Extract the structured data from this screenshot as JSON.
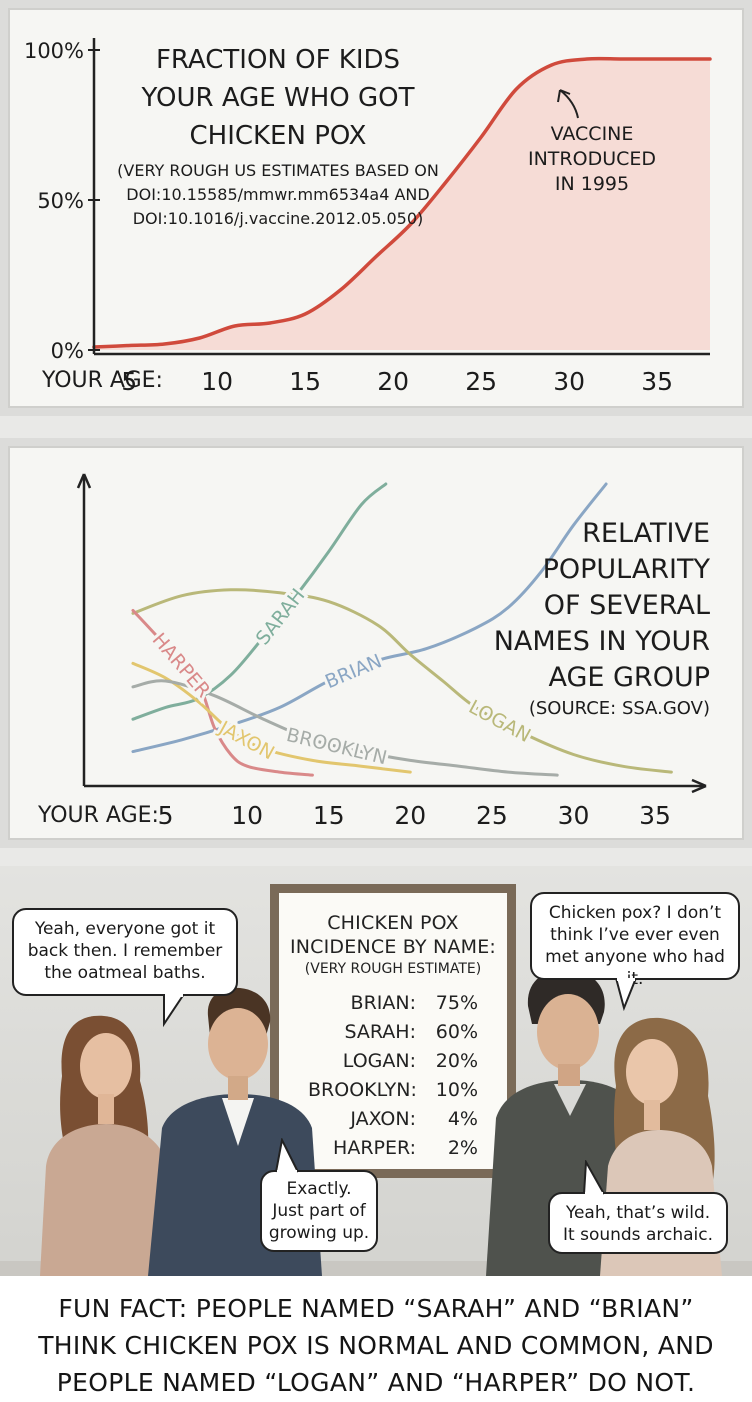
{
  "chart_data": [
    {
      "type": "area",
      "title": "FRACTION OF KIDS YOUR AGE WHO GOT CHICKEN POX",
      "title_lines": [
        "FRACTION OF KIDS",
        "YOUR AGE WHO GOT",
        "CHICKEN POX"
      ],
      "subtitle_lines": [
        "(VERY ROUGH US ESTIMATES BASED ON",
        "DOI:10.15585/mmwr.mm6534a4 AND",
        "DOI:10.1016/j.vaccine.2012.05.050)"
      ],
      "xlabel": "YOUR AGE:",
      "x_ticks": [
        "5",
        "10",
        "15",
        "20",
        "25",
        "30",
        "35"
      ],
      "y_ticks": [
        "0%",
        "50%",
        "100%"
      ],
      "xlim": [
        3,
        38
      ],
      "ylim": [
        0,
        100
      ],
      "annotation": [
        "VACCINE",
        "INTRODUCED",
        "IN 1995"
      ],
      "line_color": "#d04a3c",
      "fill_color": "#f6dcd6",
      "x": [
        3,
        5,
        7,
        9,
        11,
        13,
        15,
        17,
        19,
        21,
        23,
        25,
        27,
        29,
        31,
        33,
        35,
        37,
        38
      ],
      "y": [
        1,
        1.5,
        2,
        4,
        8,
        9,
        12,
        20,
        31,
        42,
        56,
        71,
        87,
        95,
        97,
        97,
        97,
        97,
        97
      ]
    },
    {
      "type": "line",
      "title_lines": [
        "RELATIVE",
        "POPULARITY",
        "OF SEVERAL",
        "NAMES IN YOUR",
        "AGE GROUP"
      ],
      "source": "(SOURCE: SSA.GOV)",
      "xlabel": "YOUR AGE:",
      "x_ticks": [
        "5",
        "10",
        "15",
        "20",
        "25",
        "30",
        "35"
      ],
      "xlim": [
        0,
        38
      ],
      "ylim": [
        0,
        100
      ],
      "grid": false,
      "series": [
        {
          "name": "SARAH",
          "color": "#7fae9c",
          "x": [
            3,
            5,
            7,
            9,
            11,
            13,
            15,
            17,
            18.5
          ],
          "y": [
            20,
            24,
            27,
            35,
            48,
            62,
            77,
            93,
            100
          ]
        },
        {
          "name": "BRIAN",
          "color": "#8aa6c4",
          "x": [
            3,
            6,
            9,
            12,
            15,
            18,
            21,
            24,
            26,
            28,
            30,
            32
          ],
          "y": [
            9,
            13,
            18,
            24,
            33,
            40,
            44,
            51,
            58,
            70,
            86,
            100
          ]
        },
        {
          "name": "LOGAN",
          "color": "#b9b879",
          "x": [
            3,
            6,
            9,
            12,
            15,
            18,
            20,
            22,
            24,
            27,
            30,
            33,
            36
          ],
          "y": [
            56,
            62,
            64,
            63,
            60,
            52,
            42,
            33,
            24,
            15,
            8,
            4,
            2
          ]
        },
        {
          "name": "HARPER",
          "color": "#d98989",
          "x": [
            3,
            5,
            7,
            8,
            9,
            10,
            12,
            14
          ],
          "y": [
            57,
            45,
            32,
            17,
            8,
            4,
            2,
            1
          ]
        },
        {
          "name": "JAXON",
          "color": "#e2c66e",
          "x": [
            3,
            5,
            7,
            9,
            11,
            14,
            17,
            20
          ],
          "y": [
            39,
            34,
            26,
            16,
            10,
            6,
            4,
            2
          ]
        },
        {
          "name": "BROOKLYN",
          "color": "#a6aca8",
          "x": [
            3,
            5,
            8,
            11,
            14,
            17,
            20,
            23,
            26,
            29
          ],
          "y": [
            31,
            33,
            28,
            20,
            13,
            9,
            6,
            4,
            2,
            1
          ]
        }
      ]
    }
  ],
  "poster": {
    "title_line1": "CHICKEN POX",
    "title_line2": "INCIDENCE BY NAME:",
    "subtitle": "(VERY ROUGH ESTIMATE)",
    "rows": [
      {
        "name": "BRIAN:",
        "value": "75%"
      },
      {
        "name": "SARAH:",
        "value": "60%"
      },
      {
        "name": "LOGAN:",
        "value": "20%"
      },
      {
        "name": "BROOKLYN:",
        "value": "10%"
      },
      {
        "name": "JAXON:",
        "value": "4%"
      },
      {
        "name": "HARPER:",
        "value": "2%"
      }
    ]
  },
  "bubbles": {
    "left_woman": [
      "Yeah, everyone got it",
      "back then. I remember",
      "the oatmeal baths."
    ],
    "left_man": [
      "Exactly.",
      "Just part of",
      "growing up."
    ],
    "right_man": [
      "Chicken pox? I don’t",
      "think I’ve ever even",
      "met anyone who had it."
    ],
    "right_woman": [
      "Yeah, that’s wild.",
      "It sounds archaic."
    ]
  },
  "footer_lines": [
    "FUN FACT: PEOPLE NAMED “SARAH” AND “BRIAN”",
    "THINK CHICKEN POX IS NORMAL AND COMMON, AND",
    "PEOPLE NAMED “LOGAN” AND “HARPER” DO NOT."
  ]
}
